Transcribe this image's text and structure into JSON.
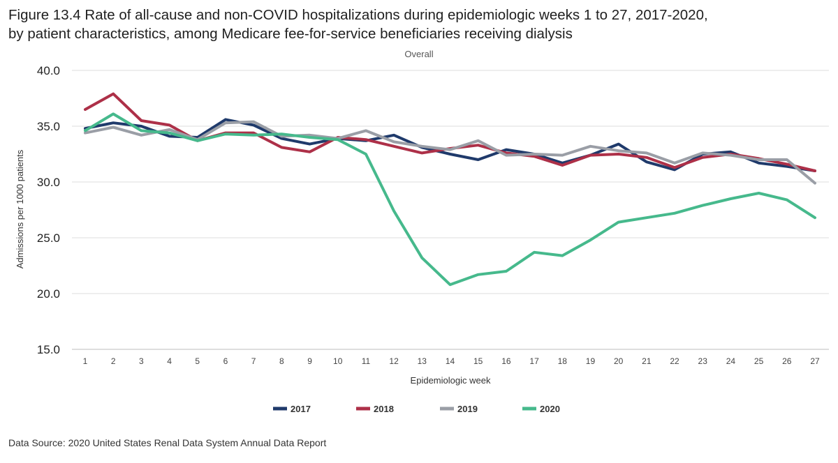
{
  "header": {
    "title_line1": "Figure 13.4 Rate of all-cause and non-COVID hospitalizations during epidemiologic weeks 1 to 27, 2017-2020,",
    "title_line2": "by patient characteristics, among Medicare fee-for-service beneficiaries receiving dialysis"
  },
  "footer": {
    "source": "Data Source: 2020 United States Renal Data System Annual Data Report"
  },
  "chart_data": {
    "type": "line",
    "title": "Overall",
    "xlabel": "Epidemiologic week",
    "ylabel": "Admissions per 1000 patients",
    "ylim": [
      15,
      40
    ],
    "yticks": [
      "15.0",
      "20.0",
      "25.0",
      "30.0",
      "35.0",
      "40.0"
    ],
    "grid": true,
    "legend": "bottom",
    "x": [
      1,
      2,
      3,
      4,
      5,
      6,
      7,
      8,
      9,
      10,
      11,
      12,
      13,
      14,
      15,
      16,
      17,
      18,
      19,
      20,
      21,
      22,
      23,
      24,
      25,
      26,
      27
    ],
    "series": [
      {
        "name": "2017",
        "color": "#1f3a6b",
        "values": [
          34.8,
          35.3,
          35.0,
          34.1,
          34.0,
          35.6,
          35.1,
          33.9,
          33.4,
          33.9,
          33.7,
          34.2,
          33.1,
          32.5,
          32.0,
          32.9,
          32.5,
          31.7,
          32.4,
          33.4,
          31.8,
          31.1,
          32.5,
          32.7,
          31.7,
          31.4,
          31.0
        ]
      },
      {
        "name": "2018",
        "color": "#ad3048",
        "values": [
          36.5,
          37.9,
          35.5,
          35.1,
          33.7,
          34.4,
          34.4,
          33.1,
          32.7,
          34.0,
          33.8,
          33.2,
          32.6,
          33.0,
          33.3,
          32.6,
          32.3,
          31.5,
          32.4,
          32.5,
          32.2,
          31.3,
          32.2,
          32.5,
          32.1,
          31.6,
          31.0
        ]
      },
      {
        "name": "2019",
        "color": "#9a9ea6",
        "values": [
          34.4,
          34.9,
          34.2,
          34.7,
          33.8,
          35.3,
          35.4,
          34.1,
          34.2,
          33.9,
          34.6,
          33.6,
          33.2,
          32.9,
          33.7,
          32.4,
          32.5,
          32.4,
          33.2,
          32.8,
          32.6,
          31.7,
          32.6,
          32.4,
          32.0,
          32.0,
          29.9
        ]
      },
      {
        "name": "2020",
        "color": "#46b98c",
        "values": [
          34.6,
          36.1,
          34.6,
          34.4,
          33.7,
          34.3,
          34.2,
          34.3,
          34.0,
          33.8,
          32.5,
          27.4,
          23.2,
          20.8,
          21.7,
          22.0,
          23.7,
          23.4,
          24.8,
          26.4,
          26.8,
          27.2,
          27.9,
          28.5,
          29.0,
          28.4,
          26.8
        ]
      }
    ]
  }
}
